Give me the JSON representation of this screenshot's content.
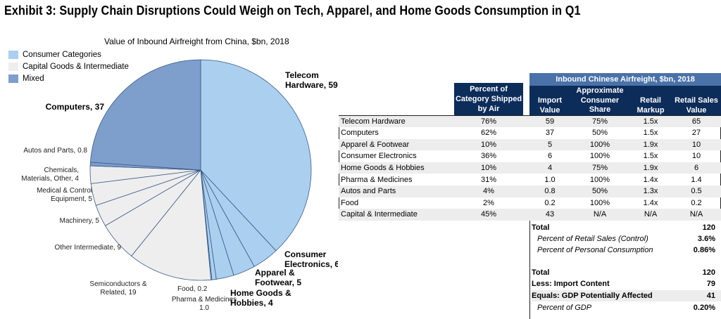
{
  "title": "Exhibit 3: Supply Chain Disruptions Could Weigh on Tech, Apparel, and Home Goods Consumption in Q1",
  "chart_data": [
    {
      "type": "pie",
      "title": "Value of Inbound Airfreight from China, $bn, 2018",
      "legend": {
        "placement": "top-left",
        "entries": [
          {
            "name": "Consumer Categories",
            "color": "#abcfef"
          },
          {
            "name": "Capital Goods & Intermediate",
            "color": "#eeeeee"
          },
          {
            "name": "Mixed",
            "color": "#7e9ecc"
          }
        ]
      },
      "slices": [
        {
          "label": "Telecom Hardware, 59",
          "value": 59,
          "group": "Consumer Categories",
          "bold": true
        },
        {
          "label": "Consumer Electronics, 6",
          "value": 6,
          "group": "Consumer Categories",
          "bold": true
        },
        {
          "label": "Apparel & Footwear, 5",
          "value": 5,
          "group": "Consumer Categories",
          "bold": true
        },
        {
          "label": "Home Goods & Hobbies, 4",
          "value": 4,
          "group": "Consumer Categories",
          "bold": true
        },
        {
          "label": "Pharma & Medicines 1.0",
          "value": 1.0,
          "group": "Consumer Categories",
          "bold": false
        },
        {
          "label": "Food, 0.2",
          "value": 0.2,
          "group": "Consumer Categories",
          "bold": false
        },
        {
          "label": "Semiconductors & Related, 19",
          "value": 19,
          "group": "Capital Goods & Intermediate",
          "bold": false
        },
        {
          "label": "Other Intermediate, 9",
          "value": 9,
          "group": "Capital Goods & Intermediate",
          "bold": false
        },
        {
          "label": "Machinery, 5",
          "value": 5,
          "group": "Capital Goods & Intermediate",
          "bold": false
        },
        {
          "label": "Medical & Control Equipment, 5",
          "value": 5,
          "group": "Capital Goods & Intermediate",
          "bold": false
        },
        {
          "label": "Chemicals, Materials, Other, 4",
          "value": 4,
          "group": "Capital Goods & Intermediate",
          "bold": false
        },
        {
          "label": "Autos and Parts, 0.8",
          "value": 0.8,
          "group": "Mixed",
          "bold": false
        },
        {
          "label": "Computers, 37",
          "value": 37,
          "group": "Mixed",
          "bold": true
        }
      ]
    },
    {
      "type": "table",
      "group_header": "Inbound Chinese Airfreight, $bn, 2018",
      "columns": [
        "",
        "Percent of Category Shipped by Air",
        "Import Value",
        "Approximate Consumer Share",
        "Retail Markup",
        "Retail Sales Value"
      ],
      "rows": [
        [
          "Telecom Hardware",
          "76%",
          "59",
          "75%",
          "1.5x",
          "65"
        ],
        [
          "Computers",
          "62%",
          "37",
          "50%",
          "1.5x",
          "27"
        ],
        [
          "Apparel & Footwear",
          "10%",
          "5",
          "100%",
          "1.9x",
          "10"
        ],
        [
          "Consumer Electronics",
          "36%",
          "6",
          "100%",
          "1.5x",
          "10"
        ],
        [
          "Home Goods & Hobbies",
          "10%",
          "4",
          "75%",
          "1.9x",
          "6"
        ],
        [
          "Pharma & Medicines",
          "31%",
          "1.0",
          "100%",
          "1.4x",
          "1.4"
        ],
        [
          "Autos and Parts",
          "4%",
          "0.8",
          "50%",
          "1.3x",
          "0.5"
        ],
        [
          "Food",
          "2%",
          "0.2",
          "100%",
          "1.4x",
          "0.2"
        ],
        [
          "Capital & Intermediate",
          "45%",
          "43",
          "N/A",
          "N/A",
          "N/A"
        ]
      ],
      "summary": [
        {
          "label": "Total",
          "value": "120",
          "style": "bold"
        },
        {
          "label": "Percent of Retail Sales (Control)",
          "value": "3.6%",
          "style": "italic"
        },
        {
          "label": "Percent of Personal Consumption",
          "value": "0.86%",
          "style": "italic"
        },
        {
          "label": "Total",
          "value": "120",
          "style": "bold"
        },
        {
          "label": "Less: Import Content",
          "value": "79",
          "style": "bold"
        },
        {
          "label": "Equals: GDP Potentially Affected",
          "value": "41",
          "style": "bold"
        },
        {
          "label": "Percent of GDP",
          "value": "0.20%",
          "style": "italic"
        }
      ]
    }
  ]
}
